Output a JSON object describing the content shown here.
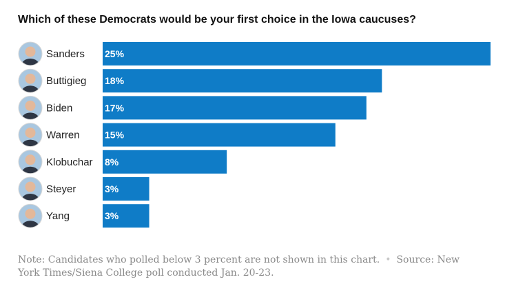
{
  "title": "Which of these Democrats would be your first choice in the Iowa caucuses?",
  "note": "Note: Candidates who polled below 3 percent are not shown in this chart.",
  "source": "Source: New York Times/Siena College poll conducted Jan. 20-23.",
  "colors": {
    "bar": "#0f7cc7",
    "bar_label": "#ffffff",
    "name": "#222222"
  },
  "chart_data": {
    "type": "bar",
    "orientation": "horizontal",
    "title": "Which of these Democrats would be your first choice in the Iowa caucuses?",
    "categories": [
      "Sanders",
      "Buttigieg",
      "Biden",
      "Warren",
      "Klobuchar",
      "Steyer",
      "Yang"
    ],
    "values": [
      25,
      18,
      17,
      15,
      8,
      3,
      3
    ],
    "value_labels": [
      "25%",
      "18%",
      "17%",
      "15%",
      "8%",
      "3%",
      "3%"
    ],
    "unit": "%",
    "xlim": [
      0,
      25
    ],
    "grid": false,
    "legend": "none"
  }
}
